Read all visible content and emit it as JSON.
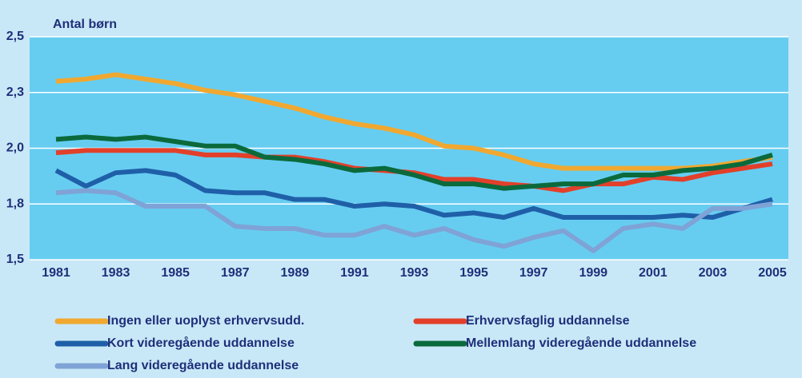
{
  "chart_data": {
    "type": "line",
    "y_label": "Antal børn",
    "x": [
      1981,
      1982,
      1983,
      1984,
      1985,
      1986,
      1987,
      1988,
      1989,
      1990,
      1991,
      1992,
      1993,
      1994,
      1995,
      1996,
      1997,
      1998,
      1999,
      2000,
      2001,
      2002,
      2003,
      2004,
      2005
    ],
    "xlim": [
      1981,
      2005
    ],
    "xticks": [
      1981,
      1983,
      1985,
      1987,
      1989,
      1991,
      1993,
      1995,
      1997,
      1999,
      2001,
      2003,
      2005
    ],
    "ylim": [
      1.5,
      2.5
    ],
    "yticks": [
      {
        "value": 1.5,
        "label": "1,5"
      },
      {
        "value": 1.75,
        "label": "1,8"
      },
      {
        "value": 2.0,
        "label": "2,0"
      },
      {
        "value": 2.25,
        "label": "2,3"
      },
      {
        "value": 2.5,
        "label": "2,5"
      }
    ],
    "grid": true,
    "series": [
      {
        "name": "Ingen eller uoplyst erhvervsudd.",
        "color": "#f0a830",
        "values": [
          2.3,
          2.31,
          2.33,
          2.31,
          2.29,
          2.26,
          2.24,
          2.21,
          2.18,
          2.14,
          2.11,
          2.09,
          2.06,
          2.01,
          2.0,
          1.97,
          1.93,
          1.91,
          1.91,
          1.91,
          1.91,
          1.91,
          1.92,
          1.94,
          1.96
        ]
      },
      {
        "name": "Erhvervsfaglig uddannelse",
        "color": "#e2402a",
        "values": [
          1.98,
          1.99,
          1.99,
          1.99,
          1.99,
          1.97,
          1.97,
          1.96,
          1.96,
          1.94,
          1.91,
          1.9,
          1.89,
          1.86,
          1.86,
          1.84,
          1.83,
          1.81,
          1.84,
          1.84,
          1.87,
          1.86,
          1.89,
          1.91,
          1.93
        ]
      },
      {
        "name": "Kort videregående uddannelse",
        "color": "#1f5fa8",
        "values": [
          1.9,
          1.83,
          1.89,
          1.9,
          1.88,
          1.81,
          1.8,
          1.8,
          1.77,
          1.77,
          1.74,
          1.75,
          1.74,
          1.7,
          1.71,
          1.69,
          1.73,
          1.69,
          1.69,
          1.69,
          1.69,
          1.7,
          1.69,
          1.73,
          1.77
        ]
      },
      {
        "name": "Mellemlang videregående uddannelse",
        "color": "#0b6a3c",
        "values": [
          2.04,
          2.05,
          2.04,
          2.05,
          2.03,
          2.01,
          2.01,
          1.96,
          1.95,
          1.93,
          1.9,
          1.91,
          1.88,
          1.84,
          1.84,
          1.82,
          1.83,
          1.84,
          1.84,
          1.88,
          1.88,
          1.9,
          1.91,
          1.93,
          1.97
        ]
      },
      {
        "name": "Lang videregående uddannelse",
        "color": "#7fa3d6",
        "values": [
          1.8,
          1.81,
          1.8,
          1.74,
          1.74,
          1.74,
          1.65,
          1.64,
          1.64,
          1.61,
          1.61,
          1.65,
          1.61,
          1.64,
          1.59,
          1.56,
          1.6,
          1.63,
          1.54,
          1.64,
          1.66,
          1.64,
          1.73,
          1.73,
          1.75
        ]
      }
    ]
  }
}
